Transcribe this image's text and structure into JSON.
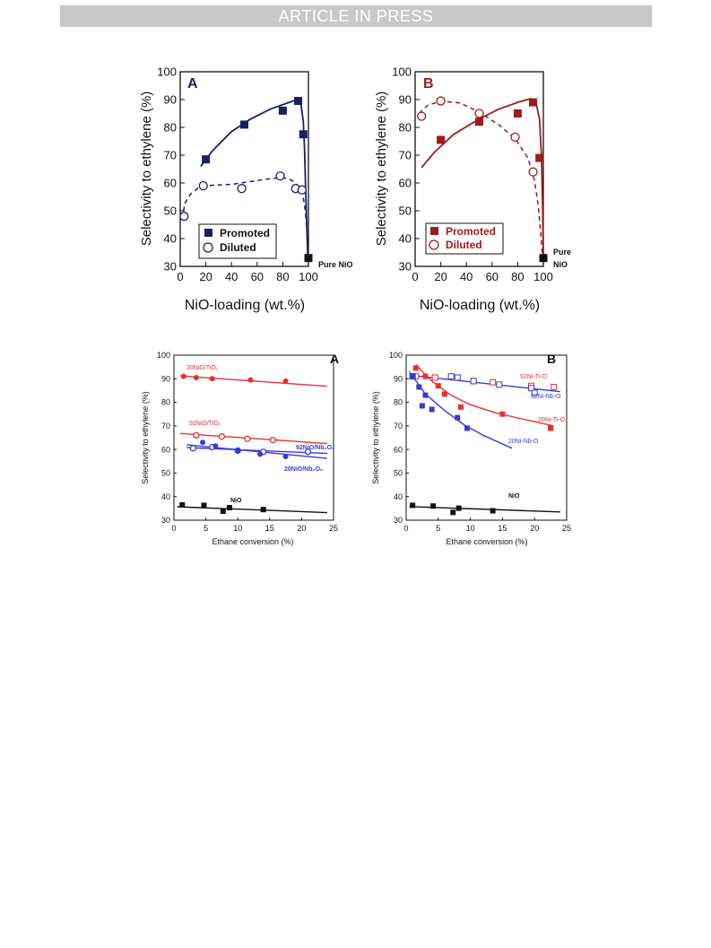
{
  "header": {
    "banner": "ARTICLE IN PRESS"
  },
  "colors": {
    "navy": "#1a1f66",
    "darkred": "#9e1b1b",
    "red": "#e8302f",
    "blue": "#3a3ad6",
    "black": "#111111"
  },
  "chart_data": [
    {
      "type": "scatter",
      "panel_label": "A",
      "xlabel": "NiO-loading (wt.%)",
      "ylabel": "Selectivity to ethylene (%)",
      "xlim": [
        0,
        100
      ],
      "ylim": [
        30,
        100
      ],
      "xticks": [
        "0",
        "20",
        "40",
        "60",
        "80",
        "100"
      ],
      "yticks": [
        "30",
        "40",
        "50",
        "60",
        "70",
        "80",
        "90",
        "100"
      ],
      "annotation": "Pure NiO",
      "legend": [
        "Promoted",
        "Diluted"
      ],
      "series": [
        {
          "name": "Promoted",
          "marker": "filled-square",
          "x": [
            20,
            50,
            80,
            92,
            96
          ],
          "y": [
            68.5,
            81,
            86,
            89.5,
            77.5
          ]
        },
        {
          "name": "Diluted",
          "marker": "open-circle",
          "x": [
            3,
            18,
            48,
            78,
            90,
            95
          ],
          "y": [
            48,
            59,
            58,
            62.5,
            58,
            57.5
          ]
        },
        {
          "name": "",
          "marker": "filled-square-black",
          "x": [
            100
          ],
          "y": [
            33
          ]
        }
      ]
    },
    {
      "type": "scatter",
      "panel_label": "B",
      "xlabel": "NiO-loading (wt.%)",
      "ylabel": "Selectivity to ethylene (%)",
      "xlim": [
        0,
        100
      ],
      "ylim": [
        30,
        100
      ],
      "xticks": [
        "0",
        "20",
        "40",
        "60",
        "80",
        "100"
      ],
      "yticks": [
        "30",
        "40",
        "50",
        "60",
        "70",
        "80",
        "90",
        "100"
      ],
      "annotation_line1": "Pure",
      "annotation_line2": "NiO",
      "legend": [
        "Promoted",
        "Diluted"
      ],
      "series": [
        {
          "name": "Promoted",
          "marker": "filled-square",
          "x": [
            20,
            50,
            80,
            92,
            97
          ],
          "y": [
            75.5,
            82,
            85,
            89,
            69
          ]
        },
        {
          "name": "Diluted",
          "marker": "open-circle",
          "x": [
            5,
            20,
            50,
            78,
            92
          ],
          "y": [
            84,
            89.5,
            85,
            76.5,
            64
          ]
        },
        {
          "name": "",
          "marker": "filled-square-black",
          "x": [
            100
          ],
          "y": [
            33
          ]
        }
      ]
    },
    {
      "type": "scatter",
      "panel_label": "A",
      "xlabel": "Ethane conversion (%)",
      "ylabel": "Selectivity to ethylene (%)",
      "xlim": [
        0,
        25
      ],
      "ylim": [
        30,
        100
      ],
      "xticks": [
        "0",
        "5",
        "10",
        "15",
        "20",
        "25"
      ],
      "yticks": [
        "30",
        "40",
        "50",
        "60",
        "70",
        "80",
        "90",
        "100"
      ],
      "series": [
        {
          "name": "20NiO/TiO₂",
          "marker": "filled-circle",
          "x": [
            1.5,
            3.5,
            6,
            12,
            17.5
          ],
          "y": [
            91,
            90.5,
            90,
            89.5,
            89
          ]
        },
        {
          "name": "92NiO/TiO₂",
          "marker": "open-circle",
          "x": [
            3.5,
            7.5,
            11.5,
            15.5
          ],
          "y": [
            66,
            65.5,
            64.5,
            64
          ]
        },
        {
          "name": "92NiO/Nb₂O₅",
          "marker": "open-circle",
          "x": [
            3,
            6,
            10,
            14,
            21
          ],
          "y": [
            60.5,
            61,
            59.5,
            59,
            59
          ]
        },
        {
          "name": "20NiO/Nb₂O₅",
          "marker": "filled-circle",
          "x": [
            4.5,
            6.5,
            10,
            13.5,
            17.5
          ],
          "y": [
            63,
            61.5,
            59.5,
            58,
            57
          ]
        },
        {
          "name": "NiO",
          "marker": "filled-square",
          "x": [
            1.3,
            4.7,
            7.7,
            8.7,
            14
          ],
          "y": [
            36.5,
            36.3,
            33.8,
            35.3,
            34.5
          ]
        }
      ]
    },
    {
      "type": "scatter",
      "panel_label": "B",
      "xlabel": "Ethane conversion (%)",
      "ylabel": "Selectivity to ethylene (%)",
      "xlim": [
        0,
        25
      ],
      "ylim": [
        30,
        100
      ],
      "xticks": [
        "0",
        "5",
        "10",
        "15",
        "20",
        "25"
      ],
      "yticks": [
        "30",
        "40",
        "50",
        "60",
        "70",
        "80",
        "90",
        "100"
      ],
      "series": [
        {
          "name": "92Ni-Ti-O",
          "marker": "open-square",
          "x": [
            1.5,
            4.5,
            7.5,
            10.5,
            13.5,
            19.5,
            23
          ],
          "y": [
            91,
            90.5,
            90.5,
            89,
            88.5,
            87,
            86.5
          ]
        },
        {
          "name": "92Ni-Nb-O",
          "marker": "open-square",
          "x": [
            1,
            7,
            8,
            10.5,
            14.5,
            19.5,
            20
          ],
          "y": [
            91,
            91,
            90.5,
            89,
            87.5,
            86,
            84
          ]
        },
        {
          "name": "20Ni-Ti-O",
          "marker": "filled-square",
          "x": [
            1.5,
            3,
            5,
            6,
            8.5,
            15,
            22.5
          ],
          "y": [
            94.5,
            91,
            87,
            83.5,
            78,
            75,
            69
          ]
        },
        {
          "name": "20Ni-Nb-O",
          "marker": "filled-square",
          "x": [
            1,
            2,
            2.5,
            3,
            4,
            8,
            9.5
          ],
          "y": [
            91,
            86.5,
            78.5,
            83,
            77,
            73.5,
            69
          ]
        },
        {
          "name": "NiO",
          "marker": "filled-square",
          "x": [
            1,
            4.2,
            7.3,
            8.2,
            13.5
          ],
          "y": [
            36.3,
            36,
            33.3,
            35.1,
            34
          ]
        }
      ]
    }
  ]
}
